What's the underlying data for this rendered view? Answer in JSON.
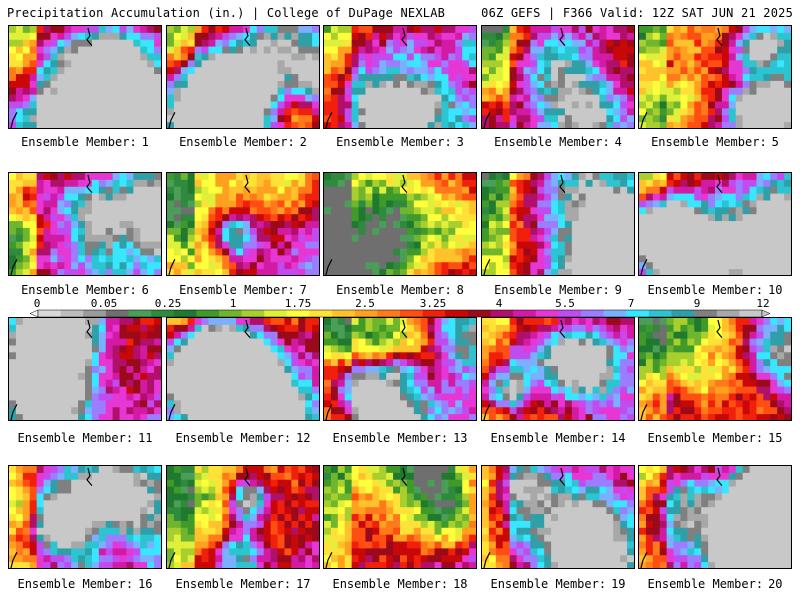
{
  "header": {
    "left": "Precipitation Accumulation (in.) | College of DuPage NEXLAB",
    "right": "06Z GEFS | F366 Valid: 12Z SAT JUN 21 2025"
  },
  "caption_prefix": "Ensemble Member:",
  "members": [
    {
      "number": "1"
    },
    {
      "number": "2"
    },
    {
      "number": "3"
    },
    {
      "number": "4"
    },
    {
      "number": "5"
    },
    {
      "number": "6"
    },
    {
      "number": "7"
    },
    {
      "number": "8"
    },
    {
      "number": "9"
    },
    {
      "number": "10"
    },
    {
      "number": "11"
    },
    {
      "number": "12"
    },
    {
      "number": "13"
    },
    {
      "number": "14"
    },
    {
      "number": "15"
    },
    {
      "number": "16"
    },
    {
      "number": "17"
    },
    {
      "number": "18"
    },
    {
      "number": "19"
    },
    {
      "number": "20"
    }
  ],
  "colorbar": {
    "labels": [
      "0",
      "0.05",
      "0.25",
      "1",
      "1.75",
      "2.5",
      "3.25",
      "4",
      "5.5",
      "7",
      "9",
      "12"
    ],
    "colors": [
      "#d8d8d8",
      "#bdbdbd",
      "#9b9b9b",
      "#6f6f6f",
      "#4a9e57",
      "#2f8a3e",
      "#1f7a2f",
      "#3f9a2a",
      "#6fb52d",
      "#a8cf2e",
      "#dff03a",
      "#ffff3c",
      "#ffe237",
      "#ffc22c",
      "#ffa020",
      "#ff7a1a",
      "#ff4e12",
      "#f0200c",
      "#c80808",
      "#9a0a1a",
      "#b0106a",
      "#d21aa4",
      "#e636d4",
      "#c04cf0",
      "#9c7cff",
      "#7ab0ff",
      "#38e6ff",
      "#2cc4d0",
      "#30a0a8",
      "#808080",
      "#a8a8a8",
      "#c8c8c8"
    ]
  }
}
